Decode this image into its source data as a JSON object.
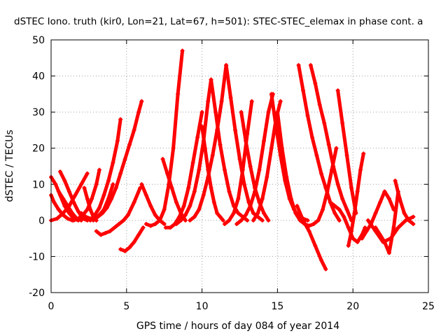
{
  "chart_data": {
    "type": "scatter",
    "title": "dSTEC Iono. truth (kir0, Lon=21, Lat=67, h=501): STEC-STEC_elemax in phase cont. a",
    "xlabel": "GPS time / hours of day 084 of year 2014",
    "ylabel": "dSTEC  / TECUs",
    "xlim": [
      0,
      25
    ],
    "ylim": [
      -20,
      50
    ],
    "xticks": [
      "0",
      "5",
      "10",
      "15",
      "20",
      "25"
    ],
    "yticks": [
      "-20",
      "-10",
      "0",
      "10",
      "20",
      "30",
      "40",
      "50"
    ],
    "grid": true,
    "marker": "+",
    "series_color": "#ff0000",
    "arcs": [
      {
        "x": [
          0.0,
          0.3,
          0.6,
          0.9,
          1.2,
          1.5,
          1.8
        ],
        "y": [
          12,
          10,
          7,
          4,
          2,
          0.5,
          0
        ]
      },
      {
        "x": [
          0.0,
          0.2,
          0.5,
          0.8,
          1.1,
          1.4
        ],
        "y": [
          7,
          5,
          3,
          1.5,
          0.5,
          0
        ]
      },
      {
        "x": [
          0.0,
          0.4,
          0.8,
          1.2,
          1.6,
          2.0,
          2.4
        ],
        "y": [
          0,
          0.5,
          2,
          4,
          7,
          10,
          13
        ]
      },
      {
        "x": [
          0.6,
          0.9,
          1.2,
          1.5,
          1.8,
          2.1,
          2.4
        ],
        "y": [
          13.5,
          11,
          8,
          5,
          2.5,
          0.5,
          0
        ]
      },
      {
        "x": [
          0.5,
          0.8,
          1.1,
          1.4,
          1.7,
          2.0
        ],
        "y": [
          8,
          6,
          4,
          2,
          0.5,
          0
        ]
      },
      {
        "x": [
          1.5,
          1.8,
          2.1,
          2.4,
          2.7,
          3.0,
          3.2
        ],
        "y": [
          0,
          0.5,
          1.5,
          3,
          6,
          10,
          14
        ]
      },
      {
        "x": [
          2.2,
          2.4,
          2.6,
          2.8,
          3.0
        ],
        "y": [
          9,
          6,
          3,
          1,
          0
        ]
      },
      {
        "x": [
          2.0,
          2.3,
          2.6,
          2.9,
          3.2,
          3.5,
          3.8,
          4.1
        ],
        "y": [
          2,
          1,
          0.5,
          0.5,
          1.5,
          3,
          6,
          10
        ]
      },
      {
        "x": [
          3.0,
          3.3,
          3.6,
          3.9,
          4.2,
          4.5,
          4.8,
          5.1,
          5.5,
          5.9
        ],
        "y": [
          -3,
          -4,
          -3.5,
          -3,
          -2,
          -1,
          0,
          1.5,
          5,
          9
        ]
      },
      {
        "x": [
          2.8,
          3.1,
          3.4,
          3.7,
          4.0,
          4.3,
          4.6,
          4.9,
          5.2,
          5.5,
          5.8,
          6.0
        ],
        "y": [
          0,
          1,
          2,
          3.5,
          6,
          9,
          13,
          17,
          21,
          25,
          30,
          33
        ]
      },
      {
        "x": [
          2.6,
          2.9,
          3.2,
          3.5,
          3.8,
          4.1,
          4.4,
          4.6
        ],
        "y": [
          0,
          1.5,
          3.5,
          7,
          11,
          16,
          22,
          28
        ]
      },
      {
        "x": [
          4.6,
          4.9,
          5.2,
          5.5,
          5.8,
          6.1
        ],
        "y": [
          -8,
          -8.5,
          -7.5,
          -6,
          -4,
          -2
        ]
      },
      {
        "x": [
          6.0,
          6.3,
          6.6,
          6.9,
          7.2,
          7.5
        ],
        "y": [
          10,
          7,
          4,
          1.5,
          0,
          -1
        ]
      },
      {
        "x": [
          6.3,
          6.6,
          6.9,
          7.2,
          7.5,
          7.8,
          8.1,
          8.4,
          8.7
        ],
        "y": [
          -1,
          -1.5,
          -1,
          0,
          3,
          10,
          20,
          35,
          47
        ]
      },
      {
        "x": [
          7.4,
          7.7,
          8.0,
          8.3,
          8.6,
          8.9
        ],
        "y": [
          17,
          13,
          9,
          5,
          2,
          0
        ]
      },
      {
        "x": [
          7.6,
          7.9,
          8.2,
          8.5,
          8.8,
          9.1,
          9.4,
          9.7,
          10.0
        ],
        "y": [
          -2,
          -2,
          -1,
          1,
          4,
          9,
          16,
          23,
          30
        ]
      },
      {
        "x": [
          8.3,
          8.6,
          8.9,
          9.2,
          9.5,
          9.8,
          10.1,
          10.4,
          10.6
        ],
        "y": [
          -1,
          0,
          1.5,
          4,
          8,
          14,
          22,
          33,
          39
        ]
      },
      {
        "x": [
          9.2,
          9.5,
          9.8,
          10.1,
          10.4,
          10.7,
          11.0,
          11.3,
          11.6
        ],
        "y": [
          0,
          1,
          3,
          7,
          12,
          18,
          25,
          33,
          43
        ]
      },
      {
        "x": [
          10.0,
          10.2,
          10.4,
          10.6,
          10.8,
          11.0,
          11.2,
          11.4
        ],
        "y": [
          26,
          20,
          14,
          9,
          5,
          2,
          1,
          0
        ]
      },
      {
        "x": [
          10.6,
          10.9,
          11.2,
          11.5,
          11.8,
          12.1,
          12.4,
          12.7,
          13.0
        ],
        "y": [
          39,
          30,
          21,
          14,
          8,
          4,
          2,
          1,
          0
        ]
      },
      {
        "x": [
          11.6,
          11.9,
          12.2,
          12.5,
          12.8,
          13.1,
          13.4,
          13.7,
          14.0
        ],
        "y": [
          43,
          34,
          25,
          17,
          10,
          5,
          2,
          1,
          0
        ]
      },
      {
        "x": [
          11.5,
          11.8,
          12.1,
          12.4,
          12.7,
          13.0,
          13.3
        ],
        "y": [
          -1,
          0,
          2,
          6,
          14,
          24,
          33
        ]
      },
      {
        "x": [
          12.3,
          12.6,
          12.9,
          13.2,
          13.5,
          13.8,
          14.1,
          14.4,
          14.7
        ],
        "y": [
          -1,
          0,
          1.5,
          4,
          8,
          14,
          22,
          30,
          35
        ]
      },
      {
        "x": [
          12.6,
          12.9,
          13.2,
          13.5,
          13.8,
          14.1,
          14.4
        ],
        "y": [
          30,
          22,
          15,
          9,
          5,
          2,
          0
        ]
      },
      {
        "x": [
          13.4,
          13.7,
          14.0,
          14.3,
          14.6,
          14.9,
          15.2
        ],
        "y": [
          0,
          2,
          6,
          12,
          20,
          28,
          33
        ]
      },
      {
        "x": [
          14.6,
          14.9,
          15.2,
          15.5,
          15.8,
          16.1,
          16.4,
          16.7,
          17.0
        ],
        "y": [
          35,
          26,
          18,
          11,
          6,
          3,
          1,
          0.5,
          0
        ]
      },
      {
        "x": [
          15.0,
          15.3,
          15.6,
          15.9,
          16.2,
          16.5
        ],
        "y": [
          30,
          20,
          12,
          6,
          2,
          0
        ]
      },
      {
        "x": [
          16.4,
          16.7,
          17.0,
          17.3,
          17.6,
          17.9,
          18.2,
          18.5,
          18.8,
          19.1
        ],
        "y": [
          43,
          36,
          29,
          23,
          18,
          13,
          9,
          5,
          2,
          0
        ]
      },
      {
        "x": [
          17.2,
          17.5,
          17.8,
          18.1,
          18.4,
          18.7,
          19.0,
          19.3,
          19.6,
          19.9
        ],
        "y": [
          43,
          38,
          32,
          27,
          21,
          15,
          10,
          6,
          3,
          0
        ]
      },
      {
        "x": [
          16.3,
          16.7,
          17.1,
          17.5,
          17.9,
          18.2
        ],
        "y": [
          4,
          0,
          -3,
          -7,
          -11,
          -13.5
        ]
      },
      {
        "x": [
          16.5,
          16.8,
          17.1,
          17.4,
          17.7,
          18.0,
          18.3,
          18.6,
          18.9
        ],
        "y": [
          0,
          -1,
          -1.5,
          -1,
          0,
          3,
          8,
          14,
          20
        ]
      },
      {
        "x": [
          18.5,
          18.8,
          19.1,
          19.4,
          19.7,
          20.0,
          20.3,
          20.6,
          20.8
        ],
        "y": [
          5,
          4,
          3,
          1,
          -2,
          -5,
          -6,
          -4,
          -2
        ]
      },
      {
        "x": [
          19.0,
          19.3,
          19.6,
          19.9,
          20.2
        ],
        "y": [
          36,
          27,
          18,
          9,
          2
        ]
      },
      {
        "x": [
          19.7,
          19.9,
          20.1,
          20.3,
          20.5,
          20.7
        ],
        "y": [
          -7,
          -3,
          2,
          8,
          14,
          18.5
        ]
      },
      {
        "x": [
          20.6,
          20.9,
          21.2,
          21.5,
          21.8,
          22.1,
          22.4,
          22.7
        ],
        "y": [
          -5,
          -3,
          -1,
          2,
          5,
          8,
          6,
          3
        ]
      },
      {
        "x": [
          21.5,
          21.8,
          22.1,
          22.4,
          22.7,
          23.0
        ],
        "y": [
          -2,
          -4,
          -6,
          -9,
          -2,
          8
        ]
      },
      {
        "x": [
          22.8,
          23.1,
          23.4,
          23.7,
          24.0
        ],
        "y": [
          11,
          6,
          2,
          0,
          -1
        ]
      },
      {
        "x": [
          21.0,
          21.5,
          22.0,
          22.5,
          23.0,
          23.5,
          24.0
        ],
        "y": [
          0,
          -3,
          -6,
          -5,
          -2,
          0,
          1
        ]
      }
    ]
  }
}
